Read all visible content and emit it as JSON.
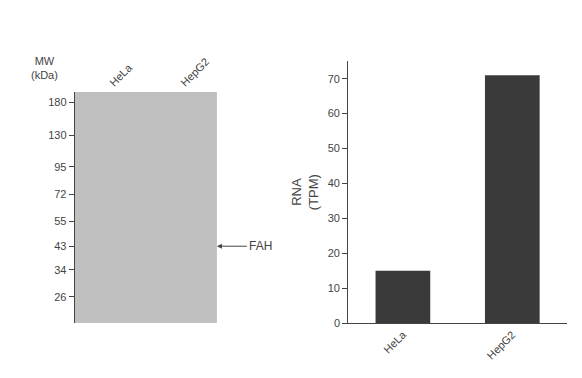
{
  "chart_data": [
    {
      "type": "blot",
      "categories": [
        "HeLa",
        "HepG2"
      ],
      "ylabel": "MW\n(kDa)",
      "log": "y",
      "ylim": [
        20,
        200
      ],
      "yticks": [
        180,
        130,
        95,
        72,
        55,
        43,
        34,
        26
      ],
      "color": "#c0c0c0",
      "grid": false,
      "annotations": [
        {
          "text": "FAH",
          "y": 43,
          "color": "#1a1a1a"
        }
      ]
    },
    {
      "type": "bar",
      "categories": [
        "HeLa",
        "HepG2"
      ],
      "values": [
        15,
        71
      ],
      "color": "#3a3a3a",
      "ylabel": "RNA\n(TPM)",
      "ylim": [
        0,
        75
      ],
      "yticks": [
        0,
        10,
        20,
        30,
        40,
        50,
        60,
        70
      ],
      "grid": false
    }
  ]
}
